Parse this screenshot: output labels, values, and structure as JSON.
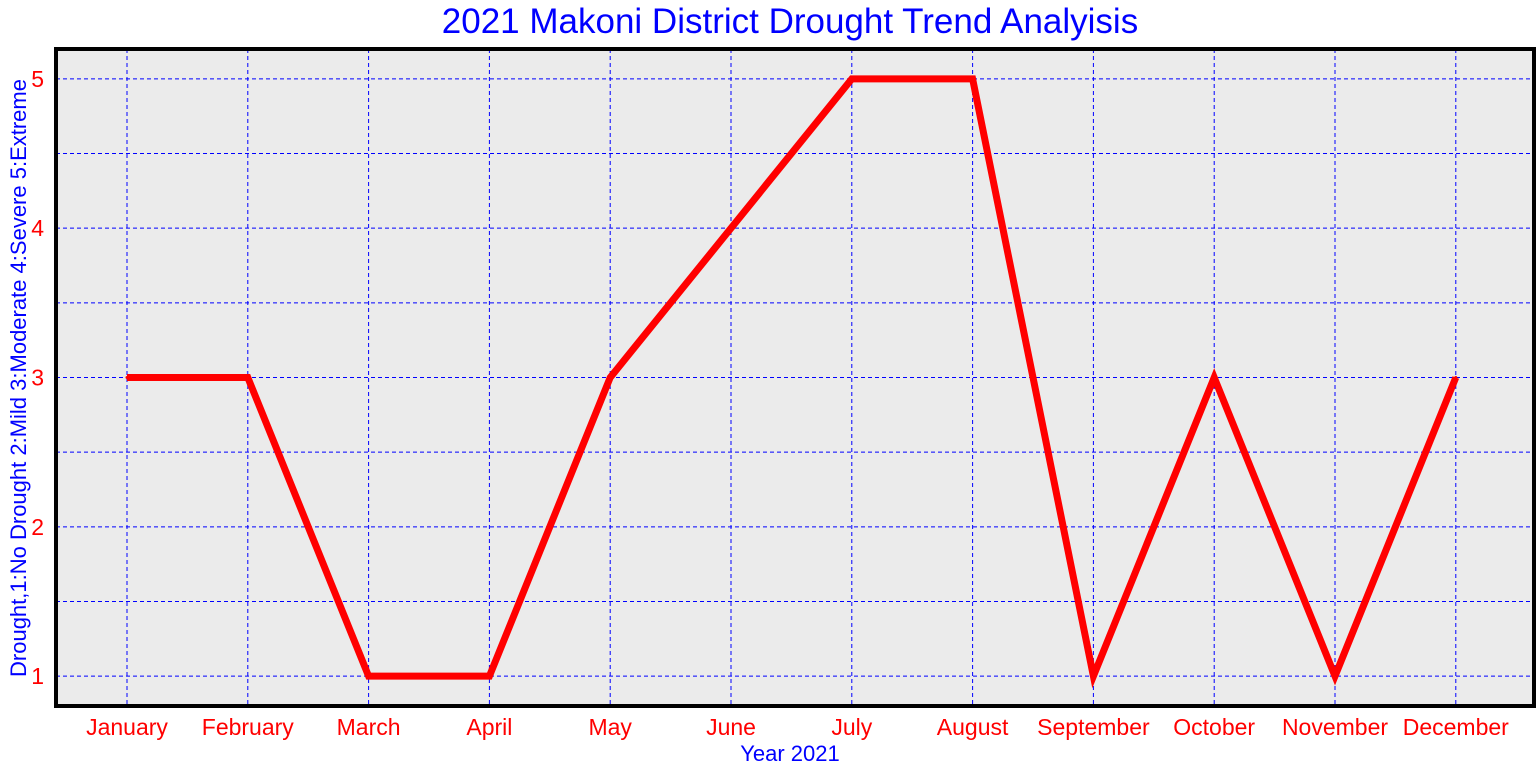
{
  "chart_data": {
    "type": "line",
    "title": "2021 Makoni District Drought Trend Analyisis",
    "xlabel": "Year 2021",
    "ylabel": "Drought,1:No Drought 2:Mild 3:Moderate 4:Severe 5:Extreme",
    "categories": [
      "January",
      "February",
      "March",
      "April",
      "May",
      "June",
      "July",
      "August",
      "September",
      "October",
      "November",
      "December"
    ],
    "series": [
      {
        "values": [
          3,
          3,
          1,
          1,
          3,
          4,
          5,
          5,
          1,
          3,
          1,
          3
        ]
      }
    ],
    "ylim": [
      0.8,
      5.2
    ],
    "yticks": [
      1,
      2,
      3,
      4,
      5
    ],
    "grid": true,
    "colors": {
      "line": "#ff0000",
      "grid": "#0000ff",
      "plot_background": "#ebebeb",
      "frame": "#000000",
      "title": "#0000ff",
      "axis_label": "#0000ff",
      "tick_label": "#ff0000"
    }
  }
}
